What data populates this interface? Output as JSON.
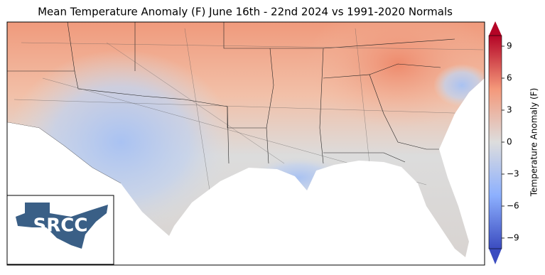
{
  "title": "Mean Temperature Anomaly (F) June 16th - 22nd 2024 vs 1991-2020 Normals",
  "colorbar": {
    "label": "Temperature Anomaly (F)",
    "lim": [
      -10,
      10
    ],
    "ticks": [
      {
        "value": -9,
        "label": "−9"
      },
      {
        "value": -6,
        "label": "−6"
      },
      {
        "value": -3,
        "label": "−3"
      },
      0,
      3,
      6,
      9
    ]
  },
  "logo": {
    "text": "SRCC"
  }
}
